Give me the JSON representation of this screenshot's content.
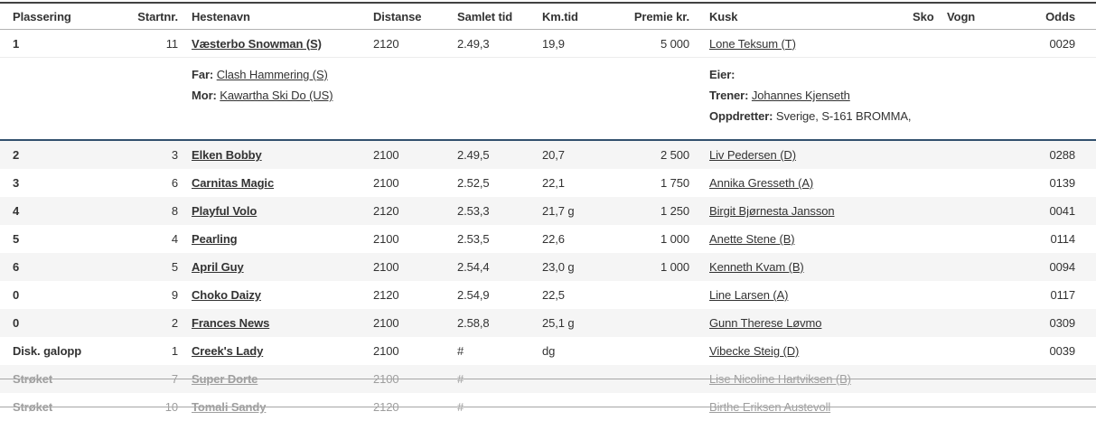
{
  "table": {
    "columns": [
      "Plassering",
      "Startnr.",
      "Hestenavn",
      "Distanse",
      "Samlet tid",
      "Km.tid",
      "Premie kr.",
      "Kusk",
      "Sko",
      "Vogn",
      "Odds"
    ]
  },
  "detail": {
    "far_label": "Far:",
    "far_value": "Clash Hammering (S)",
    "mor_label": "Mor:",
    "mor_value": "Kawartha Ski Do (US)",
    "eier_label": "Eier:",
    "eier_value": "",
    "trener_label": "Trener:",
    "trener_value": "Johannes Kjenseth",
    "oppdretter_label": "Oppdretter:",
    "oppdretter_value": "Sverige, S-161 BROMMA,"
  },
  "rows": [
    {
      "plassering": "1",
      "startnr": "11",
      "hestenavn": "Væsterbo Snowman (S)",
      "distanse": "2120",
      "samlet_tid": "2.49,3",
      "km_tid": "19,9",
      "premie": "5 000",
      "kusk": "Lone Teksum (T)",
      "sko": "",
      "vogn": "",
      "odds": "0029",
      "cancelled": false
    },
    {
      "plassering": "2",
      "startnr": "3",
      "hestenavn": "Elken Bobby",
      "distanse": "2100",
      "samlet_tid": "2.49,5",
      "km_tid": "20,7",
      "premie": "2 500",
      "kusk": "Liv Pedersen (D)",
      "sko": "",
      "vogn": "",
      "odds": "0288",
      "cancelled": false
    },
    {
      "plassering": "3",
      "startnr": "6",
      "hestenavn": "Carnitas Magic",
      "distanse": "2100",
      "samlet_tid": "2.52,5",
      "km_tid": "22,1",
      "premie": "1 750",
      "kusk": "Annika Gresseth (A)",
      "sko": "",
      "vogn": "",
      "odds": "0139",
      "cancelled": false
    },
    {
      "plassering": "4",
      "startnr": "8",
      "hestenavn": "Playful Volo",
      "distanse": "2120",
      "samlet_tid": "2.53,3",
      "km_tid": "21,7 g",
      "premie": "1 250",
      "kusk": "Birgit Bjørnesta Jansson",
      "sko": "",
      "vogn": "",
      "odds": "0041",
      "cancelled": false
    },
    {
      "plassering": "5",
      "startnr": "4",
      "hestenavn": "Pearling",
      "distanse": "2100",
      "samlet_tid": "2.53,5",
      "km_tid": "22,6",
      "premie": "1 000",
      "kusk": "Anette Stene (B)",
      "sko": "",
      "vogn": "",
      "odds": "0114",
      "cancelled": false
    },
    {
      "plassering": "6",
      "startnr": "5",
      "hestenavn": "April Guy",
      "distanse": "2100",
      "samlet_tid": "2.54,4",
      "km_tid": "23,0 g",
      "premie": "1 000",
      "kusk": "Kenneth Kvam (B)",
      "sko": "",
      "vogn": "",
      "odds": "0094",
      "cancelled": false
    },
    {
      "plassering": "0",
      "startnr": "9",
      "hestenavn": "Choko Daizy",
      "distanse": "2120",
      "samlet_tid": "2.54,9",
      "km_tid": "22,5",
      "premie": "",
      "kusk": "Line Larsen (A)",
      "sko": "",
      "vogn": "",
      "odds": "0117",
      "cancelled": false
    },
    {
      "plassering": "0",
      "startnr": "2",
      "hestenavn": "Frances News",
      "distanse": "2100",
      "samlet_tid": "2.58,8",
      "km_tid": "25,1 g",
      "premie": "",
      "kusk": "Gunn Therese Løvmo",
      "sko": "",
      "vogn": "",
      "odds": "0309",
      "cancelled": false
    },
    {
      "plassering": "Disk. galopp",
      "startnr": "1",
      "hestenavn": "Creek's Lady",
      "distanse": "2100",
      "samlet_tid": "#",
      "km_tid": "dg",
      "premie": "",
      "kusk": "Vibecke Steig (D)",
      "sko": "",
      "vogn": "",
      "odds": "0039",
      "cancelled": false
    },
    {
      "plassering": "Strøket",
      "startnr": "7",
      "hestenavn": "Super Dorte",
      "distanse": "2100",
      "samlet_tid": "#",
      "km_tid": "",
      "premie": "",
      "kusk": "Lise Nicoline Hartviksen (B)",
      "sko": "",
      "vogn": "",
      "odds": "",
      "cancelled": true
    },
    {
      "plassering": "Strøket",
      "startnr": "10",
      "hestenavn": "Tomali Sandy",
      "distanse": "2120",
      "samlet_tid": "#",
      "km_tid": "",
      "premie": "",
      "kusk": "Birthe Eriksen Austevoll",
      "sko": "",
      "vogn": "",
      "odds": "",
      "cancelled": true
    }
  ],
  "colors": {
    "divider_navy": "#31506d",
    "header_border_top": "#414141",
    "row_shade": "#f5f5f5",
    "cancelled_text": "#9e9e9e",
    "text": "#333333"
  }
}
